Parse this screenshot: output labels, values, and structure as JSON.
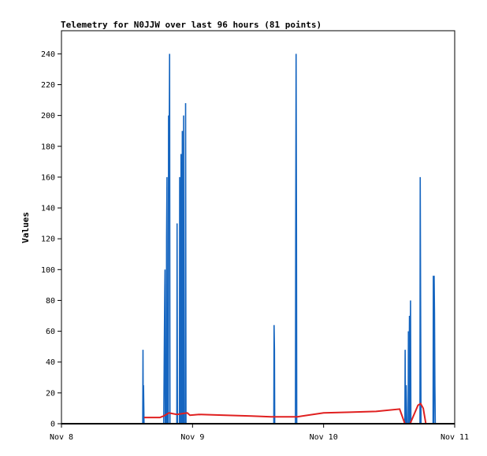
{
  "chart_data": {
    "type": "line",
    "title": "Telemetry for N0JJW over last 96 hours (81 points)",
    "xlabel": "",
    "ylabel": "Values",
    "ylim": [
      0,
      255
    ],
    "xlim": [
      0,
      3
    ],
    "x_tick_labels": [
      "Nov 8",
      "Nov 9",
      "Nov 10",
      "Nov 11"
    ],
    "y_ticks": [
      0,
      20,
      40,
      60,
      80,
      100,
      120,
      140,
      160,
      180,
      200,
      220,
      240
    ],
    "grid": false,
    "legend": "none",
    "series": [
      {
        "color": "#1565c0",
        "points": [
          [
            0.62,
            0
          ],
          [
            0.622,
            48
          ],
          [
            0.624,
            0
          ],
          [
            0.626,
            25
          ],
          [
            0.628,
            12
          ],
          [
            0.63,
            0
          ],
          [
            0.78,
            0
          ],
          [
            0.782,
            20
          ],
          [
            0.785,
            55
          ],
          [
            0.788,
            85
          ],
          [
            0.79,
            100
          ],
          [
            0.792,
            0
          ],
          [
            0.8,
            0
          ],
          [
            0.802,
            120
          ],
          [
            0.805,
            160
          ],
          [
            0.807,
            0
          ],
          [
            0.815,
            0
          ],
          [
            0.817,
            200
          ],
          [
            0.82,
            175
          ],
          [
            0.822,
            182
          ],
          [
            0.825,
            240
          ],
          [
            0.828,
            0
          ],
          [
            0.88,
            0
          ],
          [
            0.882,
            130
          ],
          [
            0.885,
            0
          ],
          [
            0.9,
            0
          ],
          [
            0.902,
            160
          ],
          [
            0.905,
            0
          ],
          [
            0.91,
            0
          ],
          [
            0.912,
            175
          ],
          [
            0.915,
            0
          ],
          [
            0.92,
            0
          ],
          [
            0.922,
            190
          ],
          [
            0.925,
            0
          ],
          [
            0.93,
            0
          ],
          [
            0.932,
            200
          ],
          [
            0.935,
            0
          ],
          [
            0.945,
            0
          ],
          [
            0.947,
            208
          ],
          [
            0.95,
            0
          ],
          [
            1.62,
            0
          ],
          [
            1.622,
            64
          ],
          [
            1.625,
            48
          ],
          [
            1.627,
            0
          ],
          [
            1.785,
            0
          ],
          [
            1.787,
            120
          ],
          [
            1.79,
            240
          ],
          [
            1.793,
            128
          ],
          [
            1.795,
            0
          ],
          [
            2.62,
            0
          ],
          [
            2.622,
            48
          ],
          [
            2.625,
            0
          ],
          [
            2.63,
            25
          ],
          [
            2.635,
            0
          ],
          [
            2.645,
            0
          ],
          [
            2.647,
            60
          ],
          [
            2.65,
            0
          ],
          [
            2.655,
            70
          ],
          [
            2.658,
            0
          ],
          [
            2.663,
            80
          ],
          [
            2.666,
            0
          ],
          [
            2.735,
            0
          ],
          [
            2.737,
            160
          ],
          [
            2.74,
            80
          ],
          [
            2.743,
            0
          ],
          [
            2.835,
            0
          ],
          [
            2.837,
            96
          ],
          [
            2.84,
            0
          ],
          [
            2.843,
            96
          ],
          [
            2.846,
            72
          ],
          [
            2.849,
            25
          ],
          [
            2.852,
            0
          ]
        ]
      },
      {
        "color": "#e02020",
        "points": [
          [
            0.63,
            4
          ],
          [
            0.75,
            4
          ],
          [
            0.78,
            5
          ],
          [
            0.82,
            7
          ],
          [
            0.88,
            6
          ],
          [
            0.92,
            6.5
          ],
          [
            0.96,
            7
          ],
          [
            0.98,
            5.5
          ],
          [
            1.05,
            6
          ],
          [
            1.25,
            5.5
          ],
          [
            1.45,
            5
          ],
          [
            1.6,
            4.5
          ],
          [
            1.8,
            4.5
          ],
          [
            2.0,
            7
          ],
          [
            2.2,
            7.5
          ],
          [
            2.4,
            8
          ],
          [
            2.58,
            9.5
          ],
          [
            2.62,
            0
          ],
          [
            2.66,
            0
          ],
          [
            2.72,
            12
          ],
          [
            2.74,
            13
          ],
          [
            2.76,
            10
          ],
          [
            2.78,
            0
          ]
        ]
      },
      {
        "color": "#000000",
        "points": [
          [
            0,
            0
          ],
          [
            3,
            0
          ]
        ]
      }
    ]
  }
}
